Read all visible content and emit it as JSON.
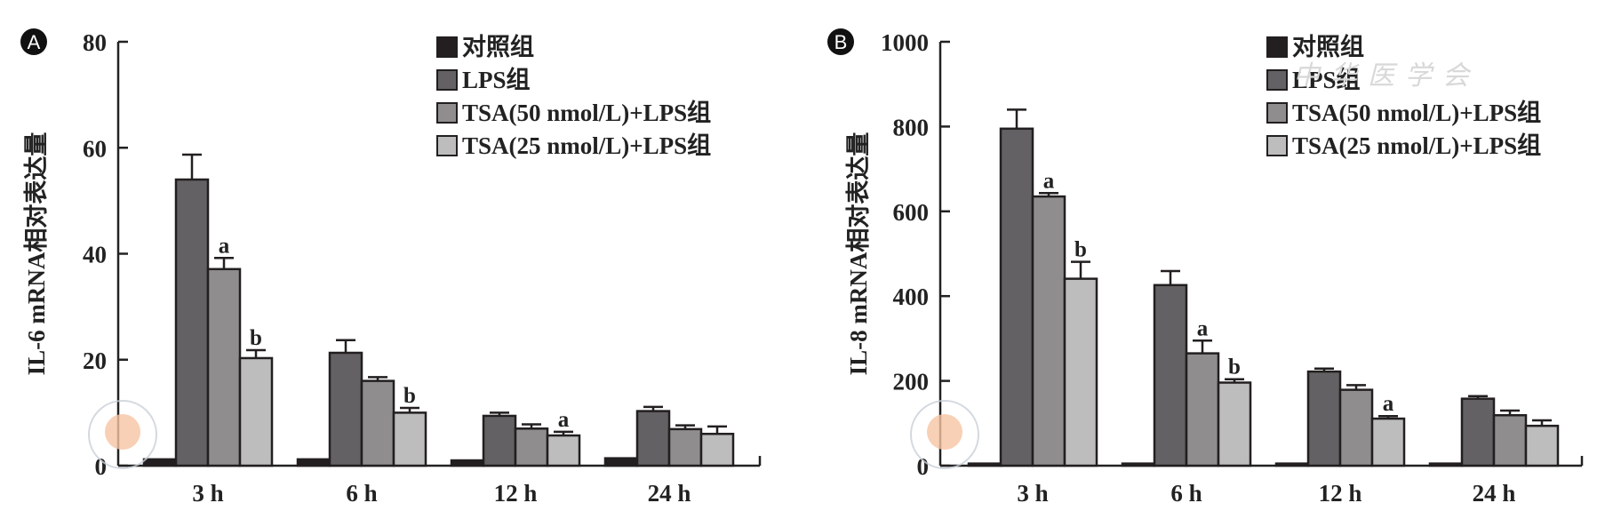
{
  "legend": [
    {
      "label": "对照组",
      "color": "#231f20"
    },
    {
      "label": "LPS组",
      "color": "#636163"
    },
    {
      "label": "TSA(50 nmol/L)+LPS组",
      "color": "#8f8d8e"
    },
    {
      "label": "TSA(25 nmol/L)+LPS组",
      "color": "#bdbdbd"
    }
  ],
  "watermark": "中华医学会",
  "chart_data": [
    {
      "type": "bar",
      "panel": "A",
      "title": "",
      "xlabel": "",
      "ylabel": "IL-6 mRNA相对表达量",
      "ylim": [
        0,
        80
      ],
      "yticks": [
        0,
        20,
        40,
        60,
        80
      ],
      "categories": [
        "3 h",
        "6 h",
        "12 h",
        "24 h"
      ],
      "legend_position": "top-right",
      "grid": false,
      "series": [
        {
          "name": "对照组",
          "values": [
            1.2,
            1.2,
            1.0,
            1.4
          ],
          "errors": [
            0,
            0,
            0,
            0
          ]
        },
        {
          "name": "LPS组",
          "values": [
            54,
            21.3,
            9.4,
            10.3
          ],
          "errors": [
            4.7,
            2.4,
            0.6,
            0.8
          ]
        },
        {
          "name": "TSA(50 nmol/L)+LPS组",
          "values": [
            37.1,
            16.0,
            7.0,
            6.9
          ],
          "errors": [
            2.1,
            0.7,
            0.8,
            0.7
          ]
        },
        {
          "name": "TSA(25 nmol/L)+LPS组",
          "values": [
            20.3,
            10.0,
            5.7,
            6.0
          ],
          "errors": [
            1.5,
            0.9,
            0.7,
            1.4
          ]
        }
      ],
      "annotations": [
        {
          "category": "3 h",
          "series": 2,
          "text": "a"
        },
        {
          "category": "3 h",
          "series": 3,
          "text": "b"
        },
        {
          "category": "6 h",
          "series": 3,
          "text": "b"
        },
        {
          "category": "12 h",
          "series": 3,
          "text": "a"
        }
      ]
    },
    {
      "type": "bar",
      "panel": "B",
      "title": "",
      "xlabel": "",
      "ylabel": "IL-8 mRNA相对表达量",
      "ylim": [
        0,
        1000
      ],
      "yticks": [
        0,
        200,
        400,
        600,
        800,
        1000
      ],
      "categories": [
        "3 h",
        "6 h",
        "12 h",
        "24 h"
      ],
      "legend_position": "top-right",
      "grid": false,
      "series": [
        {
          "name": "对照组",
          "values": [
            5,
            5,
            5,
            5
          ],
          "errors": [
            0,
            0,
            0,
            0
          ]
        },
        {
          "name": "LPS组",
          "values": [
            795,
            426,
            222,
            158
          ],
          "errors": [
            45,
            33,
            7,
            6
          ]
        },
        {
          "name": "TSA(50 nmol/L)+LPS组",
          "values": [
            635,
            265,
            179,
            119
          ],
          "errors": [
            8,
            30,
            11,
            11
          ]
        },
        {
          "name": "TSA(25 nmol/L)+LPS组",
          "values": [
            441,
            196,
            111,
            94
          ],
          "errors": [
            40,
            8,
            6,
            13
          ]
        }
      ],
      "annotations": [
        {
          "category": "3 h",
          "series": 2,
          "text": "a"
        },
        {
          "category": "3 h",
          "series": 3,
          "text": "b"
        },
        {
          "category": "6 h",
          "series": 2,
          "text": "a"
        },
        {
          "category": "6 h",
          "series": 3,
          "text": "b"
        },
        {
          "category": "12 h",
          "series": 3,
          "text": "a"
        }
      ]
    }
  ]
}
